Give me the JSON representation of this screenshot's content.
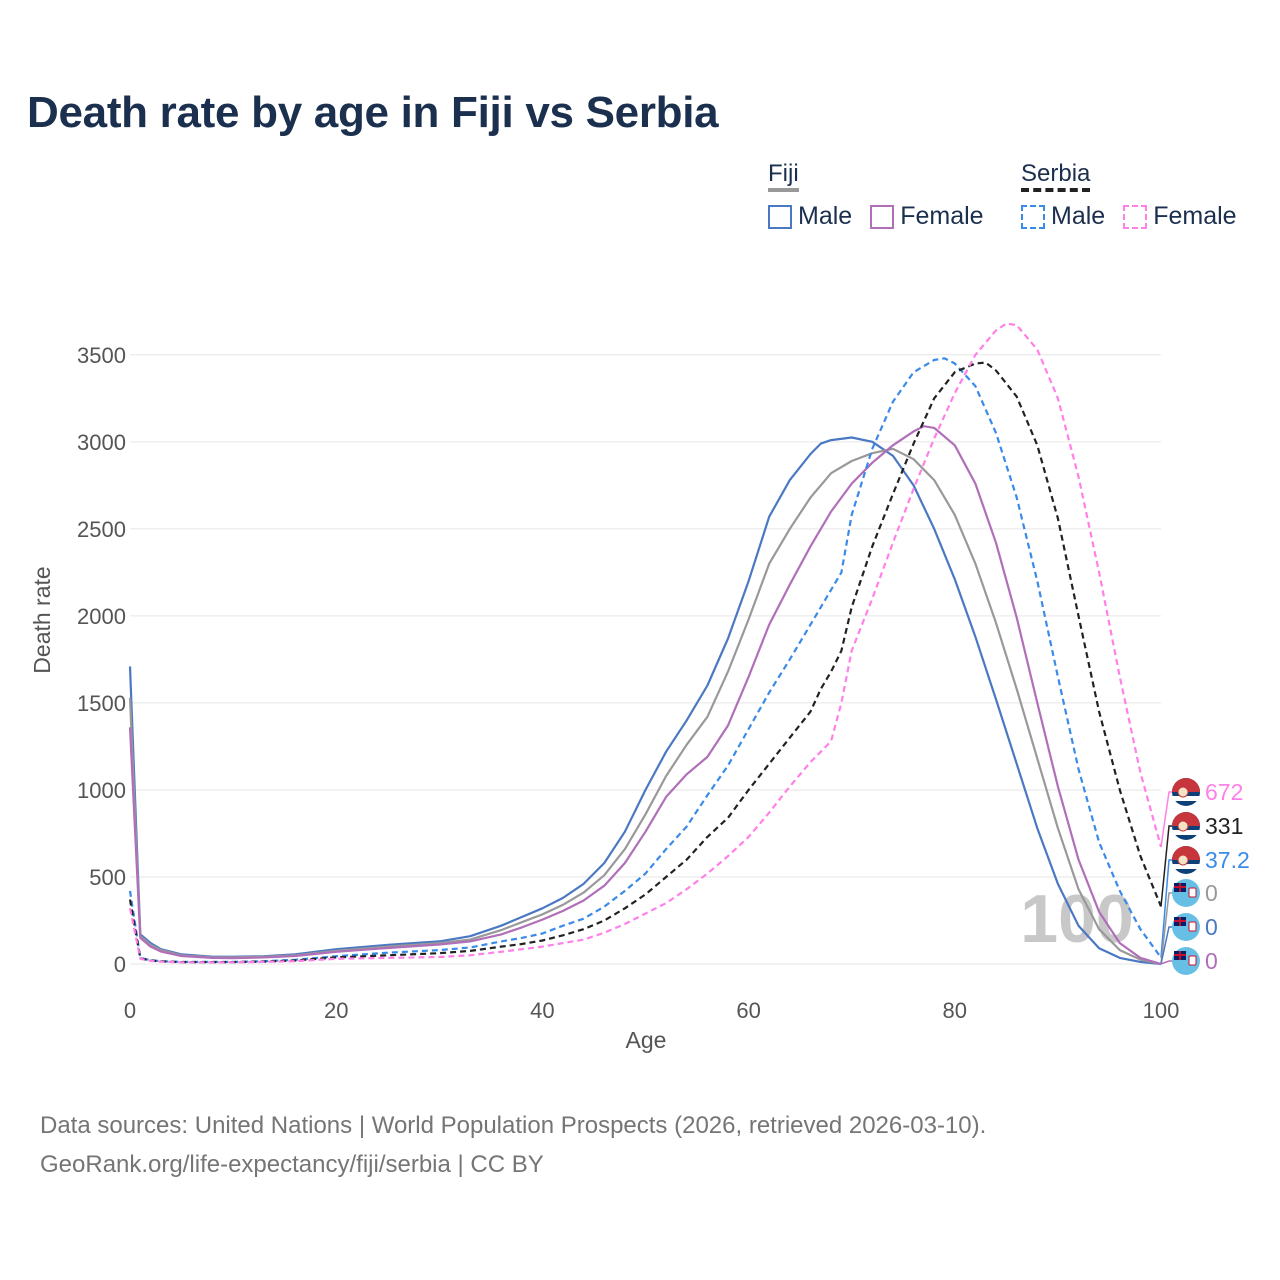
{
  "page": {
    "title": "Death rate by age in Fiji vs Serbia",
    "footer_line1": "Data sources: United Nations | World Population Prospects (2026, retrieved 2026-03-10).",
    "footer_line2": "GeoRank.org/life-expectancy/fiji/serbia | CC BY"
  },
  "legend": {
    "groups": [
      {
        "label": "Fiji",
        "line_color": "#999999",
        "dashed": false,
        "items": [
          {
            "label": "Male",
            "color": "#4a78c2",
            "dashed": false
          },
          {
            "label": "Female",
            "color": "#b06fb8",
            "dashed": false
          }
        ]
      },
      {
        "label": "Serbia",
        "line_color": "#222222",
        "dashed": true,
        "items": [
          {
            "label": "Male",
            "color": "#3a8ae8",
            "dashed": true
          },
          {
            "label": "Female",
            "color": "#ff80e8",
            "dashed": true
          }
        ]
      }
    ]
  },
  "chart_data": {
    "type": "line",
    "title": "Death rate by age in Fiji vs Serbia",
    "xlabel": "Age",
    "ylabel": "Death rate",
    "xlim": [
      0,
      100
    ],
    "ylim": [
      0,
      3700
    ],
    "xticks": [
      0,
      20,
      40,
      60,
      80,
      100
    ],
    "yticks": [
      0,
      500,
      1000,
      1500,
      2000,
      2500,
      3000,
      3500
    ],
    "grid": true,
    "current_age": "100",
    "series": [
      {
        "name": "Fiji Male",
        "country": "Fiji",
        "sex": "Male",
        "color": "#4a78c2",
        "dashed": false,
        "end_label": "0",
        "points": [
          [
            0,
            1710
          ],
          [
            1,
            170
          ],
          [
            2,
            120
          ],
          [
            3,
            85
          ],
          [
            5,
            55
          ],
          [
            8,
            42
          ],
          [
            10,
            42
          ],
          [
            13,
            45
          ],
          [
            16,
            55
          ],
          [
            20,
            85
          ],
          [
            25,
            110
          ],
          [
            30,
            130
          ],
          [
            33,
            160
          ],
          [
            36,
            220
          ],
          [
            38,
            270
          ],
          [
            40,
            320
          ],
          [
            42,
            380
          ],
          [
            44,
            460
          ],
          [
            46,
            580
          ],
          [
            48,
            760
          ],
          [
            50,
            1000
          ],
          [
            52,
            1220
          ],
          [
            54,
            1400
          ],
          [
            56,
            1600
          ],
          [
            58,
            1870
          ],
          [
            60,
            2200
          ],
          [
            62,
            2570
          ],
          [
            64,
            2780
          ],
          [
            66,
            2930
          ],
          [
            67,
            2990
          ],
          [
            68,
            3010
          ],
          [
            70,
            3025
          ],
          [
            72,
            3000
          ],
          [
            74,
            2920
          ],
          [
            76,
            2750
          ],
          [
            78,
            2500
          ],
          [
            80,
            2210
          ],
          [
            82,
            1880
          ],
          [
            84,
            1520
          ],
          [
            86,
            1150
          ],
          [
            88,
            780
          ],
          [
            90,
            460
          ],
          [
            92,
            220
          ],
          [
            94,
            90
          ],
          [
            96,
            35
          ],
          [
            98,
            12
          ],
          [
            100,
            0
          ]
        ]
      },
      {
        "name": "Fiji Total",
        "country": "Fiji",
        "sex": "Total",
        "color": "#999999",
        "dashed": false,
        "end_label": "0",
        "points": [
          [
            0,
            1530
          ],
          [
            1,
            160
          ],
          [
            2,
            110
          ],
          [
            3,
            80
          ],
          [
            5,
            50
          ],
          [
            8,
            38
          ],
          [
            10,
            38
          ],
          [
            13,
            42
          ],
          [
            16,
            50
          ],
          [
            20,
            75
          ],
          [
            25,
            100
          ],
          [
            30,
            120
          ],
          [
            33,
            140
          ],
          [
            36,
            195
          ],
          [
            38,
            240
          ],
          [
            40,
            285
          ],
          [
            42,
            340
          ],
          [
            44,
            410
          ],
          [
            46,
            510
          ],
          [
            48,
            660
          ],
          [
            50,
            860
          ],
          [
            52,
            1080
          ],
          [
            54,
            1260
          ],
          [
            56,
            1420
          ],
          [
            58,
            1680
          ],
          [
            60,
            1980
          ],
          [
            62,
            2300
          ],
          [
            64,
            2500
          ],
          [
            66,
            2680
          ],
          [
            68,
            2820
          ],
          [
            70,
            2890
          ],
          [
            72,
            2935
          ],
          [
            74,
            2960
          ],
          [
            76,
            2900
          ],
          [
            78,
            2780
          ],
          [
            80,
            2580
          ],
          [
            82,
            2300
          ],
          [
            84,
            1960
          ],
          [
            86,
            1580
          ],
          [
            88,
            1180
          ],
          [
            90,
            780
          ],
          [
            92,
            430
          ],
          [
            94,
            200
          ],
          [
            96,
            80
          ],
          [
            98,
            25
          ],
          [
            100,
            0
          ]
        ]
      },
      {
        "name": "Fiji Female",
        "country": "Fiji",
        "sex": "Female",
        "color": "#b06fb8",
        "dashed": false,
        "end_label": "0",
        "points": [
          [
            0,
            1360
          ],
          [
            1,
            150
          ],
          [
            2,
            100
          ],
          [
            3,
            72
          ],
          [
            5,
            46
          ],
          [
            8,
            35
          ],
          [
            10,
            34
          ],
          [
            13,
            38
          ],
          [
            16,
            46
          ],
          [
            20,
            70
          ],
          [
            25,
            92
          ],
          [
            30,
            112
          ],
          [
            33,
            130
          ],
          [
            36,
            170
          ],
          [
            38,
            210
          ],
          [
            40,
            255
          ],
          [
            42,
            305
          ],
          [
            44,
            365
          ],
          [
            46,
            450
          ],
          [
            48,
            580
          ],
          [
            50,
            760
          ],
          [
            52,
            960
          ],
          [
            54,
            1090
          ],
          [
            56,
            1190
          ],
          [
            58,
            1370
          ],
          [
            60,
            1650
          ],
          [
            62,
            1950
          ],
          [
            64,
            2180
          ],
          [
            66,
            2400
          ],
          [
            68,
            2600
          ],
          [
            70,
            2760
          ],
          [
            72,
            2880
          ],
          [
            74,
            2980
          ],
          [
            76,
            3060
          ],
          [
            77,
            3090
          ],
          [
            78,
            3080
          ],
          [
            80,
            2980
          ],
          [
            82,
            2760
          ],
          [
            84,
            2420
          ],
          [
            86,
            1990
          ],
          [
            88,
            1500
          ],
          [
            90,
            1020
          ],
          [
            92,
            600
          ],
          [
            94,
            300
          ],
          [
            96,
            120
          ],
          [
            98,
            35
          ],
          [
            100,
            0
          ]
        ]
      },
      {
        "name": "Serbia Male",
        "country": "Serbia",
        "sex": "Male",
        "color": "#3a8ae8",
        "dashed": true,
        "end_label": "37.2",
        "points": [
          [
            0,
            420
          ],
          [
            1,
            35
          ],
          [
            2,
            22
          ],
          [
            3,
            16
          ],
          [
            5,
            12
          ],
          [
            8,
            12
          ],
          [
            10,
            12
          ],
          [
            13,
            16
          ],
          [
            16,
            24
          ],
          [
            20,
            45
          ],
          [
            25,
            65
          ],
          [
            30,
            80
          ],
          [
            33,
            95
          ],
          [
            36,
            130
          ],
          [
            38,
            150
          ],
          [
            40,
            175
          ],
          [
            42,
            220
          ],
          [
            44,
            260
          ],
          [
            46,
            330
          ],
          [
            48,
            420
          ],
          [
            50,
            520
          ],
          [
            52,
            660
          ],
          [
            54,
            790
          ],
          [
            56,
            970
          ],
          [
            58,
            1140
          ],
          [
            60,
            1350
          ],
          [
            62,
            1560
          ],
          [
            64,
            1750
          ],
          [
            66,
            1950
          ],
          [
            67,
            2050
          ],
          [
            68,
            2150
          ],
          [
            69,
            2250
          ],
          [
            70,
            2580
          ],
          [
            72,
            2960
          ],
          [
            74,
            3230
          ],
          [
            76,
            3400
          ],
          [
            78,
            3470
          ],
          [
            79,
            3480
          ],
          [
            80,
            3450
          ],
          [
            82,
            3320
          ],
          [
            84,
            3050
          ],
          [
            86,
            2680
          ],
          [
            88,
            2200
          ],
          [
            90,
            1650
          ],
          [
            92,
            1120
          ],
          [
            94,
            700
          ],
          [
            96,
            420
          ],
          [
            98,
            200
          ],
          [
            100,
            37
          ]
        ]
      },
      {
        "name": "Serbia Total",
        "country": "Serbia",
        "sex": "Total",
        "color": "#222222",
        "dashed": true,
        "end_label": "331",
        "points": [
          [
            0,
            370
          ],
          [
            1,
            32
          ],
          [
            2,
            20
          ],
          [
            3,
            15
          ],
          [
            5,
            11
          ],
          [
            8,
            11
          ],
          [
            10,
            11
          ],
          [
            13,
            14
          ],
          [
            16,
            20
          ],
          [
            20,
            38
          ],
          [
            25,
            50
          ],
          [
            30,
            62
          ],
          [
            33,
            75
          ],
          [
            36,
            100
          ],
          [
            38,
            115
          ],
          [
            40,
            135
          ],
          [
            42,
            165
          ],
          [
            44,
            200
          ],
          [
            46,
            250
          ],
          [
            48,
            320
          ],
          [
            50,
            400
          ],
          [
            52,
            500
          ],
          [
            54,
            600
          ],
          [
            56,
            730
          ],
          [
            58,
            840
          ],
          [
            60,
            1000
          ],
          [
            62,
            1150
          ],
          [
            64,
            1300
          ],
          [
            66,
            1450
          ],
          [
            67,
            1580
          ],
          [
            68,
            1680
          ],
          [
            69,
            1800
          ],
          [
            70,
            2050
          ],
          [
            72,
            2400
          ],
          [
            74,
            2700
          ],
          [
            76,
            2990
          ],
          [
            78,
            3250
          ],
          [
            80,
            3400
          ],
          [
            82,
            3450
          ],
          [
            83,
            3455
          ],
          [
            84,
            3410
          ],
          [
            86,
            3260
          ],
          [
            88,
            2980
          ],
          [
            90,
            2560
          ],
          [
            92,
            2000
          ],
          [
            94,
            1450
          ],
          [
            96,
            1000
          ],
          [
            98,
            620
          ],
          [
            100,
            331
          ]
        ]
      },
      {
        "name": "Serbia Female",
        "country": "Serbia",
        "sex": "Female",
        "color": "#ff80e8",
        "dashed": true,
        "end_label": "672",
        "points": [
          [
            0,
            320
          ],
          [
            1,
            30
          ],
          [
            2,
            18
          ],
          [
            3,
            13
          ],
          [
            5,
            10
          ],
          [
            8,
            10
          ],
          [
            10,
            10
          ],
          [
            13,
            12
          ],
          [
            16,
            16
          ],
          [
            20,
            30
          ],
          [
            25,
            35
          ],
          [
            30,
            40
          ],
          [
            33,
            50
          ],
          [
            36,
            70
          ],
          [
            38,
            85
          ],
          [
            40,
            100
          ],
          [
            42,
            120
          ],
          [
            44,
            140
          ],
          [
            46,
            180
          ],
          [
            48,
            230
          ],
          [
            50,
            290
          ],
          [
            52,
            350
          ],
          [
            54,
            430
          ],
          [
            56,
            520
          ],
          [
            58,
            620
          ],
          [
            60,
            730
          ],
          [
            62,
            870
          ],
          [
            64,
            1020
          ],
          [
            66,
            1160
          ],
          [
            67,
            1220
          ],
          [
            68,
            1280
          ],
          [
            69,
            1500
          ],
          [
            70,
            1800
          ],
          [
            72,
            2100
          ],
          [
            74,
            2420
          ],
          [
            76,
            2730
          ],
          [
            78,
            3020
          ],
          [
            80,
            3280
          ],
          [
            82,
            3500
          ],
          [
            84,
            3640
          ],
          [
            85,
            3680
          ],
          [
            86,
            3670
          ],
          [
            88,
            3530
          ],
          [
            90,
            3250
          ],
          [
            92,
            2800
          ],
          [
            94,
            2250
          ],
          [
            96,
            1650
          ],
          [
            98,
            1100
          ],
          [
            100,
            672
          ]
        ]
      }
    ]
  }
}
